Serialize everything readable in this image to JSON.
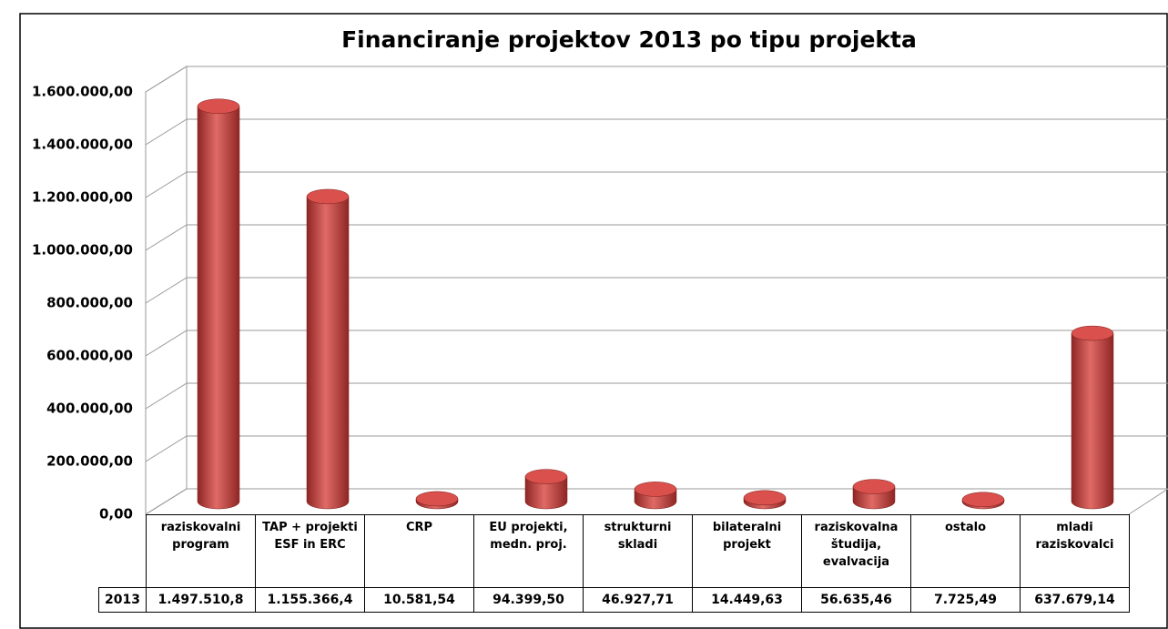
{
  "chart_data": {
    "type": "bar3d",
    "title": "Financiranje projektov 2013 po tipu projekta",
    "categories": [
      "raziskovalni program",
      "TAP + projekti ESF in ERC",
      "CRP",
      "EU projekti, medn. proj.",
      "strukturni skladi",
      "bilateralni projekt",
      "raziskovalna študija, evalvacija",
      "ostalo",
      "mladi raziskovalci"
    ],
    "series": [
      {
        "name": "2013",
        "color": "#c0504d",
        "values": [
          1497510.8,
          1155366.4,
          10581.54,
          94399.5,
          46927.71,
          14449.63,
          56635.46,
          7725.49,
          637679.14
        ],
        "value_labels": [
          "1.497.510,8",
          "1.155.366,4",
          "10.581,54",
          "94.399,50",
          "46.927,71",
          "14.449,63",
          "56.635,46",
          "7.725,49",
          "637.679,14"
        ]
      }
    ],
    "ylim": [
      0,
      1600000
    ],
    "yticks": [
      {
        "value": 0,
        "label": "0,00"
      },
      {
        "value": 200000,
        "label": "200.000,00"
      },
      {
        "value": 400000,
        "label": "400.000,00"
      },
      {
        "value": 600000,
        "label": "600.000,00"
      },
      {
        "value": 800000,
        "label": "800.000,00"
      },
      {
        "value": 1000000,
        "label": "1.000.000,00"
      },
      {
        "value": 1200000,
        "label": "1.200.000,00"
      },
      {
        "value": 1400000,
        "label": "1.400.000,00"
      },
      {
        "value": 1600000,
        "label": "1.600.000,00"
      }
    ],
    "grid": true
  }
}
